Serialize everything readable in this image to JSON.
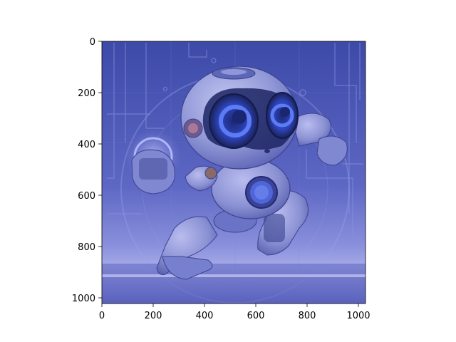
{
  "figure": {
    "background": "#ffffff",
    "image_subject": "cartoon robot running with glowing blue eyes and a glowing orb in hand on a blue circuit-board background",
    "dominant_colors": [
      "#4a55b0",
      "#6f7ad0",
      "#9aa0e6",
      "#2d3a9a",
      "#c7c9f3"
    ]
  },
  "chart_data": {
    "type": "image",
    "xlim": [
      0,
      1024
    ],
    "ylim": [
      1024,
      0
    ],
    "x_ticks": [
      "0",
      "200",
      "400",
      "600",
      "800",
      "1000"
    ],
    "y_ticks": [
      "0",
      "200",
      "400",
      "600",
      "800",
      "1000"
    ],
    "title": "",
    "xlabel": "",
    "ylabel": ""
  }
}
